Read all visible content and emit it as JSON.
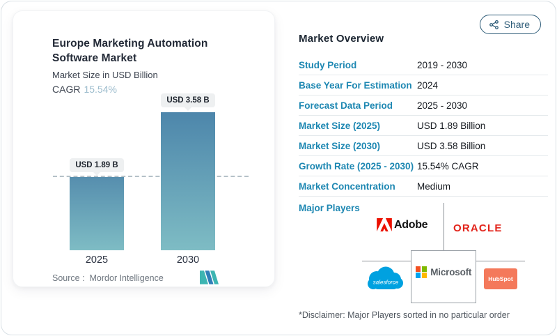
{
  "share": {
    "label": "Share",
    "icon": "share-nodes-icon",
    "color": "#2f5d79"
  },
  "chart_card": {
    "title_line1": "Europe Marketing Automation",
    "title_line2": "Software Market",
    "subtitle": "Market Size in USD Billion",
    "cagr_label": "CAGR",
    "cagr_value": "15.54%",
    "source_prefix": "Source :",
    "source_name": "Mordor Intelligence",
    "logo": "mordor-intelligence-logo"
  },
  "chart_data": {
    "type": "bar",
    "categories": [
      "2025",
      "2030"
    ],
    "values": [
      1.89,
      3.58
    ],
    "value_labels": [
      "USD 1.89 B",
      "USD 3.58 B"
    ],
    "title": "Europe Marketing Automation Software Market",
    "ylabel": "Market Size in USD Billion",
    "cagr": "15.54%",
    "ylim": [
      0,
      3.58
    ],
    "grid": false,
    "reference_line": {
      "at_value": 1.89,
      "style": "dashed"
    },
    "bar_gradient_top": "#4d86ab",
    "bar_gradient_bottom": "#7ebcc4"
  },
  "overview": {
    "heading": "Market Overview",
    "rows": [
      {
        "label": "Study Period",
        "value": "2019 - 2030"
      },
      {
        "label": "Base Year For Estimation",
        "value": "2024"
      },
      {
        "label": "Forecast Data Period",
        "value": "2025 - 2030"
      },
      {
        "label": "Market Size (2025)",
        "value": "USD 1.89 Billion"
      },
      {
        "label": "Market Size (2030)",
        "value": "USD 3.58 Billion"
      },
      {
        "label": "Growth Rate (2025 - 2030)",
        "value": "15.54% CAGR"
      },
      {
        "label": "Market Concentration",
        "value": "Medium"
      }
    ],
    "major_players_label": "Major Players",
    "players": {
      "adobe": "Adobe",
      "oracle": "ORACLE",
      "microsoft": "Microsoft",
      "salesforce": "salesforce",
      "hubspot": "HubSpot"
    },
    "disclaimer": "*Disclaimer: Major Players sorted in no particular order"
  },
  "colors": {
    "label_teal": "#1d87b2",
    "heading_dark": "#1b2531",
    "adobe_red": "#EB1000",
    "oracle_red": "#e2231a",
    "salesforce_blue": "#00A1E0",
    "hubspot_orange": "#f4795b",
    "ms_red": "#F25022",
    "ms_green": "#7FBA00",
    "ms_blue": "#00A4EF",
    "ms_yellow": "#FFB900"
  }
}
